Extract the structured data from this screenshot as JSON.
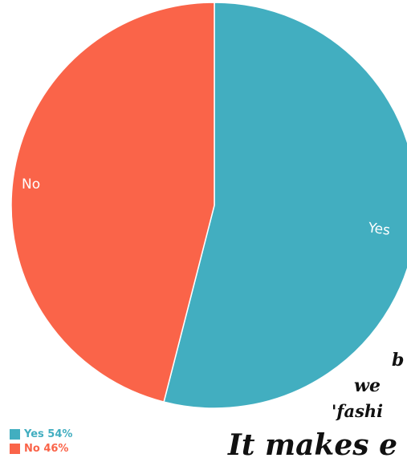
{
  "chart_data": {
    "type": "pie",
    "categories": [
      "Yes",
      "No"
    ],
    "values": [
      54,
      46
    ],
    "colors": [
      "#42aec0",
      "#fa6449"
    ],
    "slice_labels": [
      "Yes",
      "No"
    ],
    "legend": {
      "placement": "bottom-left",
      "entries": [
        "Yes 54%",
        "No 46%"
      ]
    },
    "title": ""
  },
  "overlay_text": {
    "line1": "b",
    "line2": "we",
    "line3": "'fashi",
    "line4": "It makes e"
  }
}
